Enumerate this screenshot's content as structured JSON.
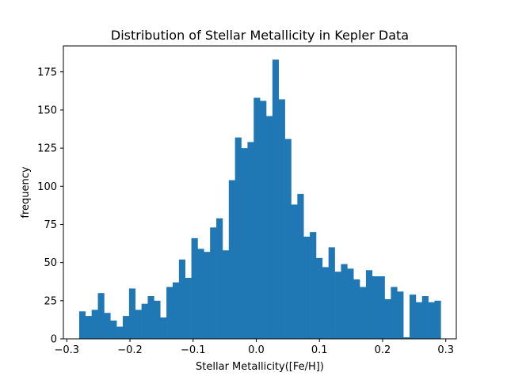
{
  "chart_data": {
    "type": "bar",
    "title": "Distribution of Stellar Metallicity in Kepler Data",
    "xlabel": "Stellar Metallicity([Fe/H])",
    "ylabel": "frequency",
    "xlim": [
      -0.3054,
      0.3167
    ],
    "ylim": [
      0,
      192
    ],
    "bin_start": -0.2804,
    "bin_width": 0.00987,
    "values": [
      18,
      15,
      19,
      30,
      17,
      12,
      8,
      15,
      33,
      19,
      23,
      28,
      25,
      14,
      34,
      37,
      52,
      40,
      66,
      59,
      57,
      73,
      79,
      58,
      104,
      132,
      125,
      129,
      158,
      156,
      146,
      183,
      157,
      131,
      88,
      95,
      67,
      70,
      53,
      47,
      60,
      44,
      49,
      46,
      39,
      34,
      45,
      41,
      41,
      26,
      34,
      31,
      1,
      29,
      24,
      28,
      24,
      25
    ],
    "xticks": [
      -0.3,
      -0.2,
      -0.1,
      0.0,
      0.1,
      0.2,
      0.3
    ],
    "xtick_labels": [
      "−0.3",
      "−0.2",
      "−0.1",
      "0.0",
      "0.1",
      "0.2",
      "0.3"
    ],
    "yticks": [
      0,
      25,
      50,
      75,
      100,
      125,
      150,
      175
    ],
    "ytick_labels": [
      "0",
      "25",
      "50",
      "75",
      "100",
      "125",
      "150",
      "175"
    ],
    "bar_color": "#1f77b4",
    "grid": false,
    "legend": "none"
  }
}
